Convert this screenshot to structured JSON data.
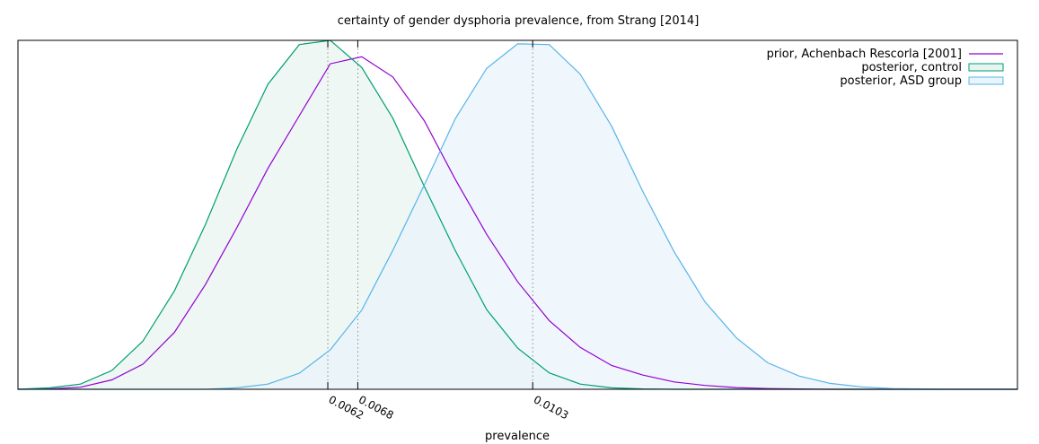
{
  "chart_data": {
    "type": "area",
    "title": "certainty of gender dysphoria prevalence, from Strang [2014]",
    "xlabel": "prevalence",
    "ylabel": "",
    "xlim": [
      0.0,
      0.02
    ],
    "ylim": [
      0.0,
      1.0
    ],
    "grid": "vertical dotted at marked ticks",
    "legend_position": "top-right",
    "xticks": [
      {
        "value": 0.0062,
        "label": "0.0062"
      },
      {
        "value": 0.0068,
        "label": "0.0068"
      },
      {
        "value": 0.0103,
        "label": "0.0103"
      }
    ],
    "series": [
      {
        "name": "prior, Achenbach  Rescorla [2001]",
        "style": "line",
        "color": "#9400d3",
        "x": [
          0.0,
          0.00063,
          0.00125,
          0.00188,
          0.0025,
          0.00313,
          0.00375,
          0.00438,
          0.005,
          0.00563,
          0.00625,
          0.00688,
          0.0075,
          0.00813,
          0.00875,
          0.00938,
          0.01,
          0.01063,
          0.01125,
          0.01188,
          0.0125,
          0.01313,
          0.01375,
          0.01438,
          0.015,
          0.01563,
          0.01625,
          0.01688,
          0.0175,
          0.01813,
          0.01875,
          0.01938,
          0.02
        ],
        "y": [
          0.0,
          0.001,
          0.006,
          0.027,
          0.072,
          0.163,
          0.3,
          0.463,
          0.633,
          0.784,
          0.933,
          0.953,
          0.895,
          0.77,
          0.602,
          0.444,
          0.308,
          0.197,
          0.12,
          0.068,
          0.041,
          0.021,
          0.011,
          0.005,
          0.002,
          0.001,
          0.0,
          0.0,
          0.0,
          0.0,
          0.0,
          0.0,
          0.0
        ]
      },
      {
        "name": "posterior, control",
        "style": "area",
        "color": "#009e73",
        "fill": "#e8f4ef",
        "x": [
          0.0,
          0.00063,
          0.00125,
          0.00188,
          0.0025,
          0.00313,
          0.00375,
          0.00438,
          0.005,
          0.00563,
          0.00625,
          0.00688,
          0.0075,
          0.00813,
          0.00875,
          0.00938,
          0.01,
          0.01063,
          0.01125,
          0.01188,
          0.0125,
          0.01313,
          0.01375,
          0.01438,
          0.015,
          0.01563,
          0.01625,
          0.01688,
          0.0175,
          0.01813,
          0.01875,
          0.01938,
          0.02
        ],
        "y": [
          0.0,
          0.004,
          0.015,
          0.054,
          0.138,
          0.282,
          0.472,
          0.688,
          0.874,
          0.988,
          1.0,
          0.922,
          0.777,
          0.582,
          0.398,
          0.228,
          0.118,
          0.047,
          0.015,
          0.004,
          0.001,
          0.0,
          0.0,
          0.0,
          0.0,
          0.0,
          0.0,
          0.0,
          0.0,
          0.0,
          0.0,
          0.0,
          0.0
        ]
      },
      {
        "name": "posterior, ASD group",
        "style": "area",
        "color": "#56b4e9",
        "fill": "#eaf4fb",
        "x": [
          0.0,
          0.00063,
          0.00125,
          0.00188,
          0.0025,
          0.00313,
          0.00375,
          0.00438,
          0.005,
          0.00563,
          0.00625,
          0.00688,
          0.0075,
          0.00813,
          0.00875,
          0.00938,
          0.01,
          0.01063,
          0.01125,
          0.01188,
          0.0125,
          0.01313,
          0.01375,
          0.01438,
          0.015,
          0.01563,
          0.01625,
          0.01688,
          0.0175,
          0.01813,
          0.01875,
          0.01938,
          0.02
        ],
        "y": [
          0.0,
          0.0,
          0.0,
          0.0,
          0.0,
          0.0,
          0.0,
          0.004,
          0.015,
          0.046,
          0.113,
          0.227,
          0.398,
          0.585,
          0.775,
          0.92,
          0.99,
          0.988,
          0.903,
          0.754,
          0.568,
          0.394,
          0.25,
          0.147,
          0.076,
          0.038,
          0.017,
          0.007,
          0.002,
          0.001,
          0.0,
          0.0,
          0.0
        ]
      }
    ]
  }
}
